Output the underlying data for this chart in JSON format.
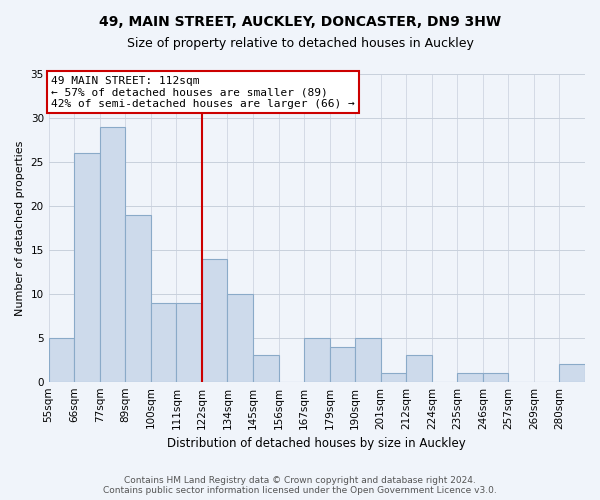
{
  "title": "49, MAIN STREET, AUCKLEY, DONCASTER, DN9 3HW",
  "subtitle": "Size of property relative to detached houses in Auckley",
  "xlabel": "Distribution of detached houses by size in Auckley",
  "ylabel": "Number of detached properties",
  "bin_labels": [
    "55sqm",
    "66sqm",
    "77sqm",
    "89sqm",
    "100sqm",
    "111sqm",
    "122sqm",
    "134sqm",
    "145sqm",
    "156sqm",
    "167sqm",
    "179sqm",
    "190sqm",
    "201sqm",
    "212sqm",
    "224sqm",
    "235sqm",
    "246sqm",
    "257sqm",
    "269sqm",
    "280sqm"
  ],
  "bar_values": [
    5,
    26,
    29,
    19,
    9,
    9,
    14,
    10,
    3,
    0,
    5,
    4,
    5,
    1,
    3,
    0,
    1,
    1,
    0,
    0,
    2
  ],
  "bar_color": "#cddaeb",
  "bar_edge_color": "#8aaac8",
  "highlight_bin_index": 5,
  "highlight_line_color": "#cc0000",
  "annotation_title": "49 MAIN STREET: 112sqm",
  "annotation_line1": "← 57% of detached houses are smaller (89)",
  "annotation_line2": "42% of semi-detached houses are larger (66) →",
  "annotation_box_color": "#ffffff",
  "annotation_box_edge_color": "#cc0000",
  "ylim": [
    0,
    35
  ],
  "yticks": [
    0,
    5,
    10,
    15,
    20,
    25,
    30,
    35
  ],
  "footer_line1": "Contains HM Land Registry data © Crown copyright and database right 2024.",
  "footer_line2": "Contains public sector information licensed under the Open Government Licence v3.0.",
  "bg_color": "#f0f4fa",
  "title_fontsize": 10,
  "subtitle_fontsize": 9,
  "ylabel_fontsize": 8,
  "xlabel_fontsize": 8.5,
  "tick_fontsize": 7.5,
  "annot_fontsize": 8,
  "footer_fontsize": 6.5
}
